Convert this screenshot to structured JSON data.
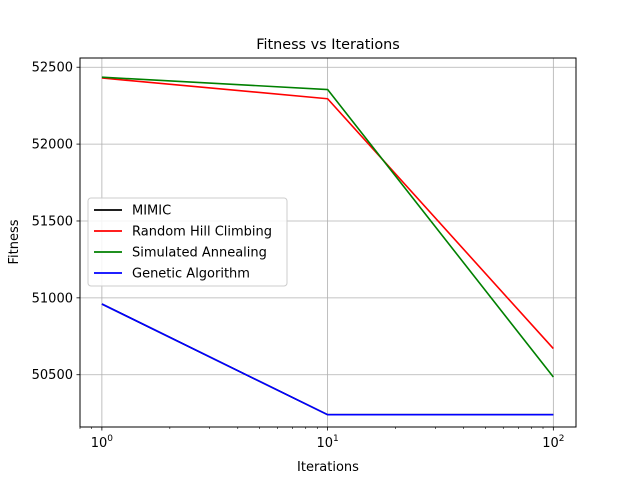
{
  "chart_data": {
    "type": "line",
    "title": "Fitness vs Iterations",
    "xlabel": "Iterations",
    "ylabel": "Fitness",
    "x_scale": "log",
    "xlim": [
      0.8,
      126
    ],
    "ylim": [
      50160,
      52560
    ],
    "grid": true,
    "legend_position": "center-left",
    "x": [
      1,
      10,
      100
    ],
    "x_ticks": [
      {
        "value": 1,
        "base": "10",
        "exp": "0"
      },
      {
        "value": 10,
        "base": "10",
        "exp": "1"
      },
      {
        "value": 100,
        "base": "10",
        "exp": "2"
      }
    ],
    "y_ticks": [
      {
        "value": 50500,
        "label": "50500"
      },
      {
        "value": 51000,
        "label": "51000"
      },
      {
        "value": 51500,
        "label": "51500"
      },
      {
        "value": 52000,
        "label": "52000"
      },
      {
        "value": 52500,
        "label": "52500"
      }
    ],
    "series": [
      {
        "name": "MIMIC",
        "color": "#000000",
        "values": [
          50960,
          50240,
          50240
        ]
      },
      {
        "name": "Random Hill Climbing",
        "color": "#ff0000",
        "values": [
          52430,
          52295,
          50670
        ]
      },
      {
        "name": "Simulated Annealing",
        "color": "#008000",
        "values": [
          52435,
          52355,
          50485
        ]
      },
      {
        "name": "Genetic Algorithm",
        "color": "#0000ff",
        "values": [
          50960,
          50240,
          50240
        ]
      }
    ]
  }
}
